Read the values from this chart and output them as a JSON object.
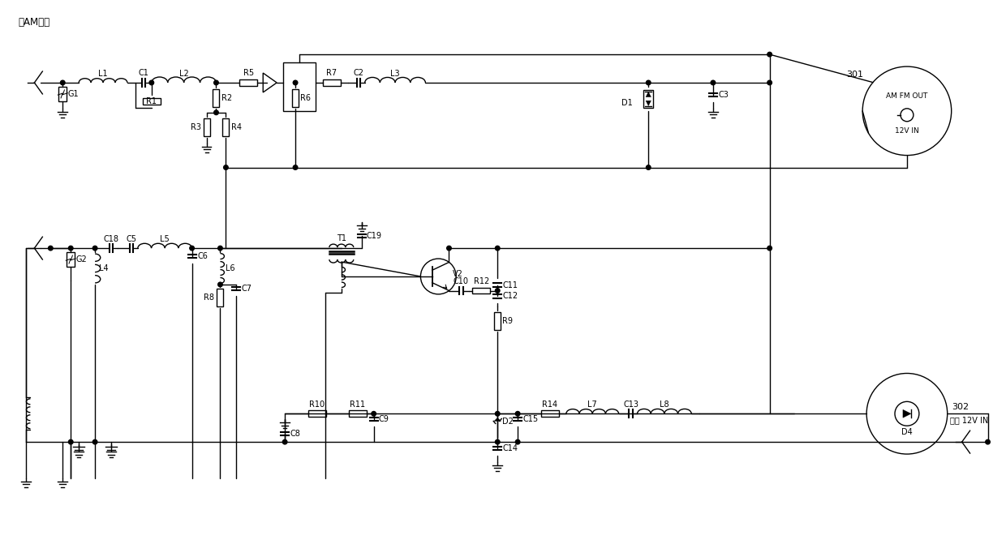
{
  "figsize": [
    12.4,
    6.71
  ],
  "dpi": 100,
  "bg": "#ffffff",
  "lc": "#000000",
  "lw": 1.0,
  "title_text": "去AM天线",
  "label_301": "301",
  "label_302": "302",
  "label_amfmout": "AM FM OUT",
  "label_12vin": "12V IN",
  "label_dewfog": "除雾 12V IN"
}
